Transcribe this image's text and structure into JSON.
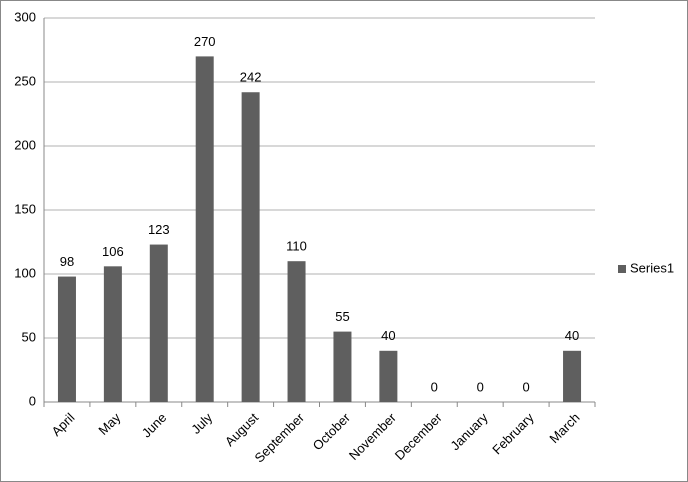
{
  "chart_data": {
    "type": "bar",
    "categories": [
      "April",
      "May",
      "June",
      "July",
      "August",
      "September",
      "October",
      "November",
      "December",
      "January",
      "February",
      "March"
    ],
    "series": [
      {
        "name": "Series1",
        "color": "#5f5f5f",
        "values": [
          98,
          106,
          123,
          270,
          242,
          110,
          55,
          40,
          0,
          0,
          0,
          40
        ]
      }
    ],
    "ylim": [
      0,
      300
    ],
    "yticks": [
      0,
      50,
      100,
      150,
      200,
      250,
      300
    ],
    "grid": true,
    "legend": "right",
    "data_labels": true
  }
}
